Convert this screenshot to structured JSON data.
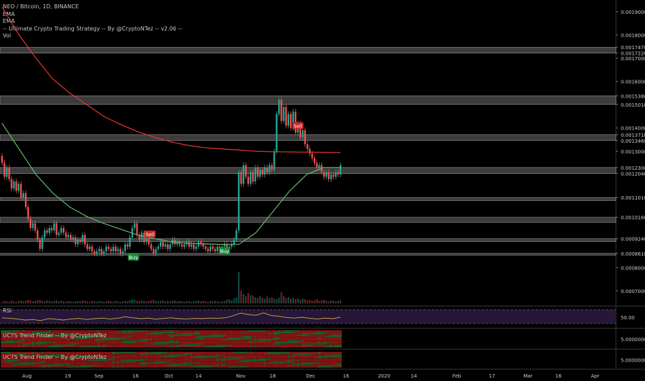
{
  "legend": {
    "title": "NEO / Bitcoin, 1D, BINANCE",
    "lines": [
      "EMA",
      "EMA",
      "-- Ultimate Crypto Trading Strategy -- By @CryptoNTez -- v2.06 --",
      "Vol"
    ]
  },
  "panes": {
    "rsi_label": "RSI",
    "trend1_label": "UCTS Trend Finder -- By @CryptoNTez",
    "trend2_label": "UCTS Trend Finder -- By @CryptoNTez"
  },
  "colors": {
    "background": "#000000",
    "up_candle": "#26a69a",
    "down_candle": "#ef5350",
    "ema_slow": "#e53935",
    "ema_fast": "#66bb6a",
    "rsi_line": "#d4a843",
    "rsi_band": "#2a1a3e",
    "zone": "#6d6d6d"
  },
  "chart_data": {
    "type": "candlestick",
    "symbol": "NEO / Bitcoin, 1D, BINANCE",
    "x_ticks": [
      "Aug",
      "19",
      "Sep",
      "16",
      "Oct",
      "14",
      "Nov",
      "18",
      "Dec",
      "16",
      "2020",
      "14",
      "Feb",
      "17",
      "Mar",
      "16",
      "Apr"
    ],
    "y_ticks": [
      "0.00190000",
      "0.00180000",
      "0.00174700",
      "0.00172200",
      "0.00170000",
      "0.00160000",
      "0.00153800",
      "0.00150100",
      "0.00140000",
      "0.00137100",
      "0.00134600",
      "0.00130000",
      "0.00123000",
      "0.00120400",
      "0.00110100",
      "0.00101600",
      "0.00092400",
      "0.00086100",
      "0.00080000",
      "0.00070000"
    ],
    "ylim": [
      0.00064,
      0.00195
    ],
    "zones": [
      [
        0.001722,
        0.001747
      ],
      [
        0.001501,
        0.001538
      ],
      [
        0.001346,
        0.001371
      ],
      [
        0.001204,
        0.00123
      ],
      [
        0.001088,
        0.001101
      ],
      [
        0.000994,
        0.001016
      ],
      [
        0.000912,
        0.000924
      ],
      [
        0.000855,
        0.000861
      ]
    ],
    "signals": [
      {
        "label": "Buy",
        "type": "buy",
        "x": 55.5,
        "price": 0.000845
      },
      {
        "label": "Sell",
        "type": "sell",
        "x": 62.5,
        "price": 0.000944
      },
      {
        "label": "Buy",
        "type": "buy",
        "x": 94,
        "price": 0.000872
      },
      {
        "label": "Sell",
        "type": "sell",
        "x": 125,
        "price": 0.00141
      }
    ],
    "candles": [
      [
        1.28,
        1.25
      ],
      [
        1.25,
        1.19
      ],
      [
        1.19,
        1.23
      ],
      [
        1.23,
        1.18
      ],
      [
        1.18,
        1.14
      ],
      [
        1.14,
        1.17
      ],
      [
        1.17,
        1.13
      ],
      [
        1.13,
        1.16
      ],
      [
        1.16,
        1.1
      ],
      [
        1.1,
        1.12
      ],
      [
        1.12,
        1.06
      ],
      [
        1.06,
        1.01
      ],
      [
        1.01,
        0.97
      ],
      [
        0.97,
        0.99
      ],
      [
        0.99,
        0.96
      ],
      [
        0.96,
        0.92
      ],
      [
        0.92,
        0.88
      ],
      [
        0.88,
        0.93
      ],
      [
        0.93,
        0.96
      ],
      [
        0.96,
        0.95
      ],
      [
        0.95,
        0.97
      ],
      [
        0.97,
        0.96
      ],
      [
        0.96,
        0.99
      ],
      [
        0.99,
        0.94
      ],
      [
        0.94,
        0.95
      ],
      [
        0.95,
        0.97
      ],
      [
        0.97,
        0.95
      ],
      [
        0.95,
        0.93
      ],
      [
        0.93,
        0.94
      ],
      [
        0.94,
        0.92
      ],
      [
        0.92,
        0.93
      ],
      [
        0.93,
        0.9
      ],
      [
        0.9,
        0.92
      ],
      [
        0.92,
        0.91
      ],
      [
        0.91,
        0.94
      ],
      [
        0.94,
        0.9
      ],
      [
        0.9,
        0.88
      ],
      [
        0.88,
        0.89
      ],
      [
        0.89,
        0.87
      ],
      [
        0.87,
        0.86
      ],
      [
        0.86,
        0.87
      ],
      [
        0.87,
        0.88
      ],
      [
        0.88,
        0.86
      ],
      [
        0.86,
        0.87
      ],
      [
        0.87,
        0.89
      ],
      [
        0.89,
        0.88
      ],
      [
        0.88,
        0.87
      ],
      [
        0.87,
        0.89
      ],
      [
        0.89,
        0.87
      ],
      [
        0.87,
        0.88
      ],
      [
        0.88,
        0.86
      ],
      [
        0.86,
        0.87
      ],
      [
        0.87,
        0.9
      ],
      [
        0.9,
        0.89
      ],
      [
        0.89,
        0.93
      ],
      [
        0.93,
        0.97
      ],
      [
        0.97,
        0.99
      ],
      [
        0.99,
        0.94
      ],
      [
        0.94,
        0.92
      ],
      [
        0.92,
        0.95
      ],
      [
        0.95,
        0.91
      ],
      [
        0.91,
        0.93
      ],
      [
        0.93,
        0.9
      ],
      [
        0.9,
        0.88
      ],
      [
        0.88,
        0.86
      ],
      [
        0.86,
        0.88
      ],
      [
        0.88,
        0.89
      ],
      [
        0.89,
        0.91
      ],
      [
        0.91,
        0.89
      ],
      [
        0.89,
        0.9
      ],
      [
        0.9,
        0.88
      ],
      [
        0.88,
        0.9
      ],
      [
        0.9,
        0.92
      ],
      [
        0.92,
        0.9
      ],
      [
        0.9,
        0.91
      ],
      [
        0.91,
        0.9
      ],
      [
        0.9,
        0.89
      ],
      [
        0.89,
        0.9
      ],
      [
        0.9,
        0.91
      ],
      [
        0.91,
        0.89
      ],
      [
        0.89,
        0.9
      ],
      [
        0.9,
        0.88
      ],
      [
        0.88,
        0.89
      ],
      [
        0.89,
        0.91
      ],
      [
        0.91,
        0.9
      ],
      [
        0.9,
        0.89
      ],
      [
        0.89,
        0.88
      ],
      [
        0.88,
        0.87
      ],
      [
        0.87,
        0.89
      ],
      [
        0.89,
        0.88
      ],
      [
        0.88,
        0.87
      ],
      [
        0.87,
        0.89
      ],
      [
        0.89,
        0.88
      ],
      [
        0.88,
        0.89
      ],
      [
        0.89,
        0.9
      ],
      [
        0.9,
        0.88
      ],
      [
        0.88,
        0.89
      ],
      [
        0.89,
        0.9
      ],
      [
        0.9,
        0.92
      ],
      [
        0.92,
        0.96
      ],
      [
        0.96,
        1.21
      ],
      [
        1.21,
        1.16
      ],
      [
        1.16,
        1.24
      ],
      [
        1.24,
        1.19
      ],
      [
        1.19,
        1.16
      ],
      [
        1.16,
        1.21
      ],
      [
        1.21,
        1.17
      ],
      [
        1.17,
        1.23
      ],
      [
        1.23,
        1.19
      ],
      [
        1.19,
        1.22
      ],
      [
        1.22,
        1.2
      ],
      [
        1.2,
        1.23
      ],
      [
        1.23,
        1.21
      ],
      [
        1.21,
        1.24
      ],
      [
        1.24,
        1.22
      ],
      [
        1.22,
        1.3
      ],
      [
        1.3,
        1.46
      ],
      [
        1.46,
        1.52
      ],
      [
        1.52,
        1.43
      ],
      [
        1.43,
        1.49
      ],
      [
        1.49,
        1.41
      ],
      [
        1.41,
        1.46
      ],
      [
        1.46,
        1.4
      ],
      [
        1.4,
        1.47
      ],
      [
        1.47,
        1.38
      ],
      [
        1.38,
        1.42
      ],
      [
        1.42,
        1.36
      ],
      [
        1.36,
        1.39
      ],
      [
        1.39,
        1.33
      ],
      [
        1.33,
        1.31
      ],
      [
        1.31,
        1.29
      ],
      [
        1.29,
        1.27
      ],
      [
        1.27,
        1.25
      ],
      [
        1.25,
        1.23
      ],
      [
        1.23,
        1.24
      ],
      [
        1.24,
        1.21
      ],
      [
        1.21,
        1.19
      ],
      [
        1.19,
        1.21
      ],
      [
        1.21,
        1.18
      ],
      [
        1.18,
        1.2
      ],
      [
        1.2,
        1.19
      ],
      [
        1.19,
        1.21
      ],
      [
        1.21,
        1.2
      ],
      [
        1.2,
        1.24
      ]
    ],
    "volume": [
      3,
      5,
      4,
      3,
      6,
      4,
      3,
      5,
      6,
      4,
      5,
      7,
      6,
      4,
      5,
      6,
      7,
      5,
      4,
      6,
      5,
      4,
      5,
      6,
      4,
      5,
      4,
      3,
      5,
      4,
      3,
      4,
      5,
      4,
      6,
      5,
      4,
      3,
      5,
      4,
      3,
      5,
      4,
      3,
      4,
      5,
      4,
      3,
      5,
      4,
      3,
      4,
      5,
      4,
      6,
      8,
      7,
      5,
      4,
      6,
      5,
      4,
      5,
      6,
      7,
      5,
      4,
      5,
      6,
      4,
      5,
      4,
      5,
      6,
      4,
      5,
      4,
      3,
      5,
      4,
      3,
      4,
      5,
      6,
      4,
      5,
      4,
      3,
      5,
      4,
      5,
      4,
      3,
      4,
      5,
      7,
      8,
      6,
      9,
      12,
      60,
      25,
      18,
      14,
      20,
      16,
      15,
      12,
      10,
      14,
      11,
      9,
      13,
      10,
      12,
      9,
      8,
      11,
      22,
      14,
      10,
      12,
      9,
      11,
      8,
      10,
      7,
      9,
      8,
      6,
      7,
      5,
      6,
      8,
      5,
      6,
      7,
      5,
      4,
      6,
      5,
      4,
      5,
      6
    ],
    "ema_slow": [
      1.92,
      1.8,
      1.7,
      1.61,
      1.55,
      1.5,
      1.45,
      1.415,
      1.385,
      1.36,
      1.34,
      1.325,
      1.315,
      1.31,
      1.305,
      1.3,
      1.298,
      1.297,
      1.296,
      1.295,
      1.294
    ],
    "ema_fast": [
      1.42,
      1.31,
      1.2,
      1.12,
      1.06,
      1.02,
      0.99,
      0.965,
      0.94,
      0.925,
      0.91,
      0.905,
      0.902,
      0.9,
      0.9,
      0.95,
      1.04,
      1.13,
      1.2,
      1.23,
      1.23
    ],
    "rsi": [
      48,
      46,
      44,
      40,
      42,
      38,
      45,
      43,
      40,
      44,
      46,
      42,
      45,
      47,
      44,
      46,
      52,
      48,
      45,
      47,
      43,
      46,
      48,
      45,
      44,
      46,
      45,
      47,
      46,
      48,
      55,
      65,
      60,
      57,
      66,
      56,
      54,
      49,
      47,
      50,
      46,
      44,
      47,
      45,
      50
    ],
    "rsi_level": 50,
    "rsi_label_value": "50.00",
    "trend_label_value": "5.00000000"
  }
}
